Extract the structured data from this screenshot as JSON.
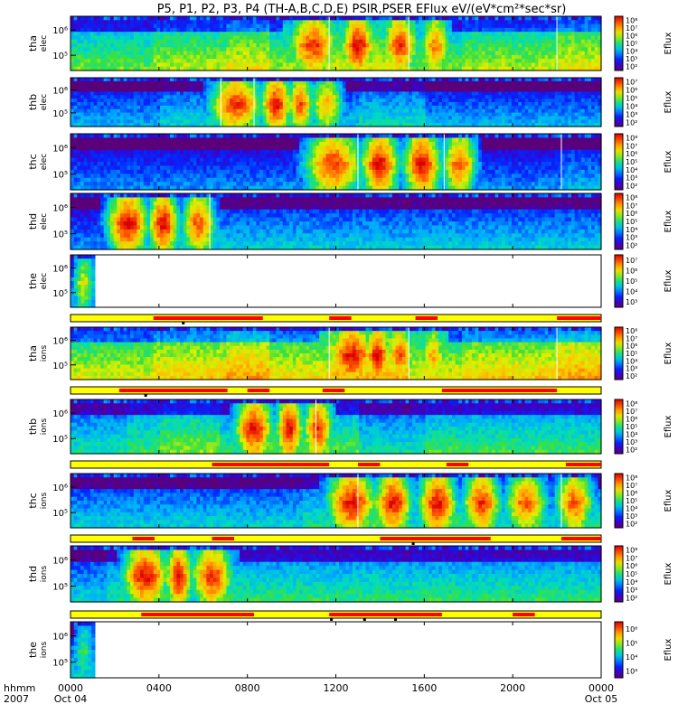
{
  "title": "P5, P1, P2, P3, P4 (TH-A,B,C,D,E) PSIR,PSER EFlux eV/(eV*cm²*sec*sr)",
  "colorbar_label": "Eflux",
  "time_axis": {
    "label_line1": "hhmm",
    "label_line2": "2007",
    "ticks": [
      {
        "hour": 0,
        "label": "0000",
        "sub": "Oct 04"
      },
      {
        "hour": 4,
        "label": "0400",
        "sub": ""
      },
      {
        "hour": 8,
        "label": "0800",
        "sub": ""
      },
      {
        "hour": 12,
        "label": "1200",
        "sub": ""
      },
      {
        "hour": 16,
        "label": "1600",
        "sub": ""
      },
      {
        "hour": 20,
        "label": "2000",
        "sub": ""
      },
      {
        "hour": 24,
        "label": "0000",
        "sub": "Oct 05"
      }
    ],
    "range_hours": [
      0,
      24
    ]
  },
  "chart_data": {
    "type": "heatmap",
    "x_unit": "hours since 2007-10-04 00:00 UT",
    "panels": [
      {
        "id": "tha-elec",
        "label": "tha",
        "sublabel": "elec",
        "y_ticks": [
          {
            "exp": 6,
            "label": "10⁶"
          },
          {
            "exp": 5,
            "label": "10⁵"
          }
        ],
        "colorbar": {
          "min_exp": 2,
          "max_exp": 8,
          "labels": [
            "10⁸",
            "10⁷",
            "10⁶",
            "10⁵",
            "10⁴",
            "10³",
            "10²"
          ]
        },
        "data_end_hour": 24,
        "edges": [
          3.75,
          7.1,
          9.0,
          11.7,
          15.3,
          17.7,
          22.0
        ],
        "bursts": [
          {
            "center": 11.0,
            "width": 2.6,
            "level": 0.95
          },
          {
            "center": 13.0,
            "width": 1.8,
            "level": 1.0
          },
          {
            "center": 14.9,
            "width": 1.9,
            "level": 0.95
          },
          {
            "center": 16.5,
            "width": 1.6,
            "level": 0.85
          }
        ],
        "base_level": 0.45,
        "spikes": [
          11.7,
          15.3,
          22.0
        ]
      },
      {
        "id": "thb-elec",
        "label": "thb",
        "sublabel": "elec",
        "y_ticks": [
          {
            "exp": 6,
            "label": "10⁶"
          },
          {
            "exp": 5,
            "label": "10⁵"
          }
        ],
        "colorbar": {
          "min_exp": 2,
          "max_exp": 7,
          "labels": [
            "10⁷",
            "10⁶",
            "10⁵",
            "10⁴",
            "10³",
            "10²"
          ]
        },
        "data_end_hour": 24,
        "edges": [
          4.0,
          6.8,
          8.3,
          13.0,
          16.0
        ],
        "bursts": [
          {
            "center": 7.5,
            "width": 2.8,
            "level": 0.95
          },
          {
            "center": 9.3,
            "width": 1.6,
            "level": 1.0
          },
          {
            "center": 10.4,
            "width": 1.4,
            "level": 0.9
          },
          {
            "center": 11.6,
            "width": 1.8,
            "level": 0.8
          }
        ],
        "base_level": 0.25,
        "spikes": [
          6.8,
          8.3
        ]
      },
      {
        "id": "thc-elec",
        "label": "thc",
        "sublabel": "elec",
        "y_ticks": [
          {
            "exp": 6,
            "label": "10⁶"
          },
          {
            "exp": 5,
            "label": "10⁵"
          }
        ],
        "colorbar": {
          "min_exp": 2,
          "max_exp": 8,
          "labels": [
            "10⁸",
            "10⁷",
            "10⁶",
            "10⁵",
            "10⁴",
            "10³",
            "10²"
          ]
        },
        "data_end_hour": 24,
        "edges": [
          10.5,
          13.0,
          14.8,
          16.9,
          18.0,
          22.2
        ],
        "bursts": [
          {
            "center": 11.9,
            "width": 3.0,
            "level": 0.95
          },
          {
            "center": 14.0,
            "width": 2.0,
            "level": 1.0
          },
          {
            "center": 15.9,
            "width": 2.0,
            "level": 1.0
          },
          {
            "center": 17.6,
            "width": 1.8,
            "level": 0.9
          }
        ],
        "base_level": 0.2,
        "spikes": [
          13.0,
          16.9,
          22.2
        ]
      },
      {
        "id": "thd-elec",
        "label": "thd",
        "sublabel": "elec",
        "y_ticks": [
          {
            "exp": 6,
            "label": "10⁶"
          },
          {
            "exp": 5,
            "label": "10⁵"
          }
        ],
        "colorbar": {
          "min_exp": 2,
          "max_exp": 8,
          "labels": [
            "10⁸",
            "10⁷",
            "10⁶",
            "10⁵",
            "10⁴",
            "10³",
            "10²"
          ]
        },
        "data_end_hour": 24,
        "edges": [
          1.6,
          3.5,
          5.2,
          6.3
        ],
        "bursts": [
          {
            "center": 2.6,
            "width": 2.2,
            "level": 1.0
          },
          {
            "center": 4.2,
            "width": 1.6,
            "level": 1.0
          },
          {
            "center": 5.8,
            "width": 1.8,
            "level": 0.9
          }
        ],
        "base_level": 0.2,
        "spikes": [
          6.3
        ]
      },
      {
        "id": "the-elec",
        "label": "the",
        "sublabel": "elec",
        "y_ticks": [
          {
            "exp": 6,
            "label": "10⁶"
          },
          {
            "exp": 5,
            "label": "10⁵"
          }
        ],
        "colorbar": {
          "min_exp": 3,
          "max_exp": 7,
          "labels": [
            "10⁷",
            "10⁶",
            "10⁵",
            "10⁴",
            "10³"
          ]
        },
        "data_end_hour": 1.1,
        "edges": [],
        "bursts": [
          {
            "center": 0.6,
            "width": 1.2,
            "level": 0.7
          }
        ],
        "base_level": 0.25,
        "spikes": []
      },
      {
        "id": "tha-ions",
        "label": "tha",
        "sublabel": "ions",
        "y_ticks": [
          {
            "exp": 6,
            "label": "10⁶"
          },
          {
            "exp": 5,
            "label": "10⁵"
          }
        ],
        "colorbar": {
          "min_exp": 2,
          "max_exp": 8,
          "labels": [
            "10⁸",
            "10⁷",
            "10⁶",
            "10⁵",
            "10⁴",
            "10³",
            "10²"
          ]
        },
        "data_end_hour": 24,
        "edges": [
          3.75,
          7.1,
          9.0,
          11.7,
          15.3,
          17.7,
          22.0
        ],
        "bursts": [
          {
            "center": 12.7,
            "width": 2.6,
            "level": 1.0
          },
          {
            "center": 13.9,
            "width": 1.4,
            "level": 1.0
          },
          {
            "center": 14.9,
            "width": 1.6,
            "level": 0.9
          },
          {
            "center": 16.4,
            "width": 1.4,
            "level": 0.8
          }
        ],
        "base_level": 0.55,
        "spikes": [
          11.7,
          15.3,
          22.0
        ]
      },
      {
        "id": "thb-ions",
        "label": "thb",
        "sublabel": "ions",
        "y_ticks": [
          {
            "exp": 6,
            "label": "10⁶"
          },
          {
            "exp": 5,
            "label": "10⁵"
          }
        ],
        "colorbar": {
          "min_exp": 2,
          "max_exp": 8,
          "labels": [
            "10⁸",
            "10⁷",
            "10⁶",
            "10⁵",
            "10⁴",
            "10³",
            "10²"
          ]
        },
        "data_end_hour": 24,
        "edges": [
          2.5,
          4.0,
          6.8,
          8.3,
          13.0,
          16.0
        ],
        "bursts": [
          {
            "center": 8.3,
            "width": 2.0,
            "level": 1.0
          },
          {
            "center": 9.9,
            "width": 1.4,
            "level": 1.0
          },
          {
            "center": 11.2,
            "width": 1.6,
            "level": 0.95
          }
        ],
        "base_level": 0.35,
        "spikes": [
          11.1
        ]
      },
      {
        "id": "thc-ions",
        "label": "thc",
        "sublabel": "ions",
        "y_ticks": [
          {
            "exp": 6,
            "label": "10⁶"
          },
          {
            "exp": 5,
            "label": "10⁵"
          }
        ],
        "colorbar": {
          "min_exp": 2,
          "max_exp": 8,
          "labels": [
            "10⁸",
            "10⁷",
            "10⁶",
            "10⁵",
            "10⁴",
            "10³",
            "10²"
          ]
        },
        "data_end_hour": 24,
        "edges": [
          10.5,
          13.0,
          14.8,
          16.9,
          18.0,
          22.2
        ],
        "bursts": [
          {
            "center": 12.7,
            "width": 2.6,
            "level": 1.0
          },
          {
            "center": 14.6,
            "width": 2.0,
            "level": 1.0
          },
          {
            "center": 16.6,
            "width": 2.0,
            "level": 1.0
          },
          {
            "center": 18.6,
            "width": 2.0,
            "level": 0.95
          },
          {
            "center": 20.6,
            "width": 2.2,
            "level": 0.9
          },
          {
            "center": 22.8,
            "width": 2.0,
            "level": 0.9
          }
        ],
        "base_level": 0.3,
        "spikes": [
          13.0,
          22.2
        ]
      },
      {
        "id": "thd-ions",
        "label": "thd",
        "sublabel": "ions",
        "y_ticks": [
          {
            "exp": 6,
            "label": "10⁶"
          },
          {
            "exp": 5,
            "label": "10⁵"
          }
        ],
        "colorbar": {
          "min_exp": 2,
          "max_exp": 8,
          "labels": [
            "10⁸",
            "10⁷",
            "10⁶",
            "10⁵",
            "10⁴",
            "10³",
            "10²"
          ]
        },
        "data_end_hour": 24,
        "edges": [
          1.6,
          3.5,
          5.2,
          6.3
        ],
        "bursts": [
          {
            "center": 3.4,
            "width": 2.4,
            "level": 1.0
          },
          {
            "center": 4.9,
            "width": 1.4,
            "level": 1.0
          },
          {
            "center": 6.4,
            "width": 2.2,
            "level": 0.95
          }
        ],
        "base_level": 0.3,
        "spikes": []
      },
      {
        "id": "the-ions",
        "label": "the",
        "sublabel": "ions",
        "y_ticks": [
          {
            "exp": 6,
            "label": "10⁶"
          },
          {
            "exp": 5,
            "label": "10⁵"
          }
        ],
        "colorbar": {
          "min_exp": 3,
          "max_exp": 6,
          "labels": [
            "10⁶",
            "10⁵",
            "10⁴",
            "10³"
          ]
        },
        "data_end_hour": 1.1,
        "edges": [],
        "bursts": [
          {
            "center": 0.6,
            "width": 1.2,
            "level": 0.55
          }
        ],
        "base_level": 0.3,
        "spikes": []
      }
    ],
    "mode_bars": [
      {
        "after_panel": "the-elec",
        "fast_intervals": [
          [
            3.75,
            8.7
          ],
          [
            11.7,
            12.7
          ],
          [
            15.6,
            16.6
          ],
          [
            22.0,
            24.0
          ]
        ],
        "marks": [
          5.1
        ]
      },
      {
        "after_panel": "tha-ions",
        "fast_intervals": [
          [
            2.2,
            7.1
          ],
          [
            8.0,
            9.0
          ],
          [
            11.4,
            12.4
          ],
          [
            16.8,
            22.0
          ]
        ],
        "marks": [
          3.4
        ]
      },
      {
        "after_panel": "thb-ions",
        "fast_intervals": [
          [
            6.4,
            11.7
          ],
          [
            13.0,
            14.0
          ],
          [
            17.0,
            18.0
          ],
          [
            22.4,
            24.0
          ]
        ],
        "marks": []
      },
      {
        "after_panel": "thc-ions",
        "fast_intervals": [
          [
            2.8,
            3.8
          ],
          [
            6.4,
            7.4
          ],
          [
            14.0,
            19.0
          ],
          [
            22.2,
            24.0
          ]
        ],
        "marks": [
          15.5
        ]
      },
      {
        "after_panel": "thd-ions",
        "fast_intervals": [
          [
            3.2,
            8.3
          ],
          [
            11.7,
            16.8
          ],
          [
            20.0,
            21.0
          ]
        ],
        "marks": [
          11.8,
          13.3,
          14.7
        ]
      }
    ]
  }
}
